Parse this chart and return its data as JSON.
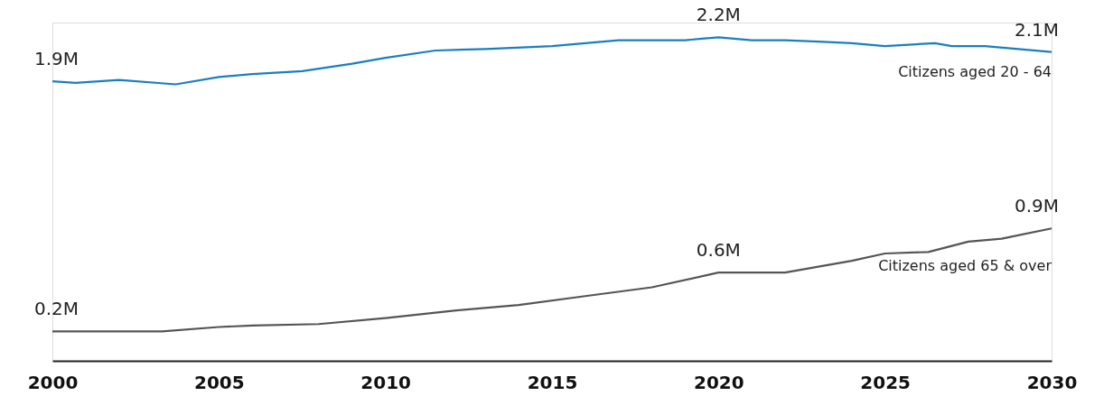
{
  "chart_data": {
    "type": "line",
    "xlim": [
      2000,
      2030
    ],
    "xticks": [
      2000,
      2005,
      2010,
      2015,
      2020,
      2025,
      2030
    ],
    "ylim": [
      0,
      2.3
    ],
    "tick_labels": "x",
    "grid": false,
    "legend": false,
    "marker": "none",
    "line_style": "solid",
    "series": [
      {
        "name": "Citizens aged 20 - 64",
        "color": "#1a7fc0",
        "x": [
          2000,
          2000.7,
          2002,
          2003.7,
          2005,
          2006,
          2007.5,
          2009,
          2010,
          2011.5,
          2013,
          2015,
          2017,
          2018,
          2019,
          2019.5,
          2020,
          2021,
          2022,
          2023,
          2024,
          2025,
          2026.5,
          2027,
          2028,
          2029,
          2030
        ],
        "values": [
          1.9,
          1.89,
          1.91,
          1.88,
          1.93,
          1.95,
          1.97,
          2.02,
          2.06,
          2.11,
          2.12,
          2.14,
          2.18,
          2.18,
          2.18,
          2.19,
          2.2,
          2.18,
          2.18,
          2.17,
          2.16,
          2.14,
          2.16,
          2.14,
          2.14,
          2.12,
          2.1
        ],
        "value_labels": [
          "1.9M",
          null,
          null,
          null,
          null,
          null,
          null,
          null,
          null,
          null,
          null,
          null,
          null,
          null,
          null,
          null,
          "2.2M",
          null,
          null,
          null,
          null,
          null,
          null,
          null,
          null,
          null,
          "2.1M"
        ]
      },
      {
        "name": "Citizens aged 65 & over",
        "color": "#555555",
        "x": [
          2000,
          2003.3,
          2005,
          2006,
          2008,
          2010,
          2012,
          2014,
          2016,
          2018,
          2020,
          2021.5,
          2022,
          2023,
          2024,
          2025,
          2026.3,
          2027.5,
          2028.5,
          2030
        ],
        "values": [
          0.2,
          0.2,
          0.23,
          0.24,
          0.25,
          0.29,
          0.34,
          0.38,
          0.44,
          0.5,
          0.6,
          0.6,
          0.6,
          0.64,
          0.68,
          0.73,
          0.74,
          0.81,
          0.83,
          0.9
        ],
        "value_labels": [
          "0.2M",
          null,
          null,
          null,
          null,
          null,
          null,
          null,
          null,
          null,
          "0.6M",
          null,
          null,
          null,
          null,
          null,
          null,
          null,
          null,
          "0.9M"
        ]
      }
    ]
  }
}
